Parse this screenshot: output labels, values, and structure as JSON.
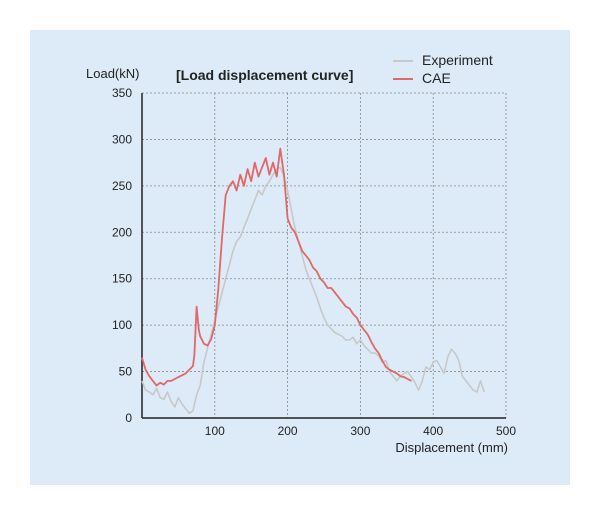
{
  "chart_data": {
    "type": "line",
    "title": "[Load displacement curve]",
    "xlabel": "Displacement (mm)",
    "ylabel": "Load(kN)",
    "xlim": [
      0,
      500
    ],
    "ylim": [
      0,
      350
    ],
    "xticks": [
      100,
      200,
      300,
      400,
      500
    ],
    "yticks": [
      0,
      50,
      100,
      150,
      200,
      250,
      300,
      350
    ],
    "grid": true,
    "legend_position": "top-right",
    "series": [
      {
        "name": "Experiment",
        "color": "#c8c8c8",
        "x": [
          0,
          5,
          10,
          15,
          20,
          25,
          30,
          35,
          40,
          45,
          50,
          55,
          60,
          65,
          70,
          75,
          80,
          85,
          90,
          95,
          100,
          105,
          110,
          115,
          120,
          125,
          130,
          135,
          140,
          145,
          150,
          155,
          160,
          165,
          170,
          175,
          180,
          185,
          190,
          195,
          200,
          205,
          210,
          215,
          220,
          225,
          230,
          235,
          240,
          245,
          250,
          255,
          260,
          265,
          270,
          275,
          280,
          285,
          290,
          295,
          300,
          305,
          310,
          315,
          320,
          325,
          330,
          335,
          340,
          345,
          350,
          355,
          360,
          365,
          370,
          375,
          380,
          385,
          390,
          395,
          400,
          405,
          410,
          415,
          420,
          425,
          430,
          435,
          440,
          445,
          450,
          455,
          460,
          465,
          470
        ],
        "values": [
          40,
          30,
          28,
          25,
          32,
          22,
          20,
          28,
          18,
          12,
          22,
          15,
          10,
          5,
          8,
          25,
          35,
          60,
          75,
          90,
          105,
          120,
          135,
          150,
          165,
          180,
          190,
          195,
          205,
          215,
          225,
          235,
          245,
          240,
          250,
          255,
          262,
          268,
          270,
          260,
          245,
          225,
          205,
          190,
          175,
          160,
          150,
          140,
          130,
          118,
          108,
          100,
          96,
          92,
          90,
          88,
          84,
          84,
          87,
          80,
          84,
          78,
          74,
          70,
          70,
          67,
          60,
          62,
          50,
          45,
          40,
          45,
          48,
          50,
          44,
          38,
          30,
          40,
          55,
          52,
          60,
          62,
          55,
          48,
          66,
          74,
          70,
          62,
          45,
          40,
          35,
          30,
          28,
          40,
          28
        ]
      },
      {
        "name": "CAE",
        "color": "#e06868",
        "x": [
          0,
          5,
          10,
          15,
          20,
          25,
          30,
          35,
          40,
          45,
          50,
          55,
          60,
          65,
          70,
          72,
          75,
          78,
          80,
          85,
          90,
          95,
          100,
          105,
          110,
          115,
          120,
          125,
          130,
          135,
          140,
          145,
          150,
          155,
          160,
          165,
          170,
          175,
          180,
          185,
          190,
          195,
          200,
          205,
          210,
          215,
          220,
          225,
          230,
          235,
          240,
          245,
          250,
          255,
          260,
          265,
          270,
          275,
          280,
          285,
          290,
          295,
          300,
          305,
          310,
          315,
          320,
          325,
          330,
          335,
          340,
          345,
          350,
          355,
          360,
          365,
          370
        ],
        "values": [
          65,
          52,
          45,
          40,
          35,
          38,
          36,
          40,
          40,
          42,
          44,
          46,
          48,
          52,
          56,
          68,
          120,
          95,
          88,
          80,
          78,
          85,
          100,
          140,
          195,
          240,
          250,
          255,
          245,
          262,
          250,
          268,
          255,
          275,
          260,
          270,
          280,
          262,
          275,
          260,
          290,
          262,
          215,
          205,
          200,
          190,
          180,
          175,
          170,
          162,
          158,
          150,
          146,
          140,
          140,
          135,
          130,
          125,
          120,
          118,
          112,
          108,
          100,
          95,
          90,
          82,
          75,
          70,
          62,
          55,
          52,
          50,
          48,
          45,
          44,
          42,
          40
        ]
      }
    ]
  }
}
